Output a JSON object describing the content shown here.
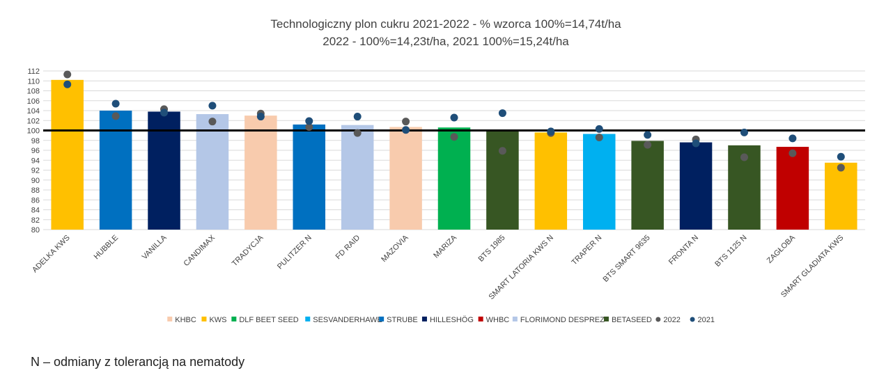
{
  "chart_data": {
    "type": "bar",
    "title_line1": "Technologiczny plon cukru 2021-2022 - % wzorca 100%=14,74t/ha",
    "title_line2": "2022 - 100%=14,23t/ha, 2021 100%=15,24t/ha",
    "ylim": [
      80,
      112
    ],
    "y_ticks": [
      80,
      82,
      84,
      86,
      88,
      90,
      92,
      94,
      96,
      98,
      100,
      102,
      104,
      106,
      108,
      110,
      112
    ],
    "reference_line": 100,
    "grid": true,
    "legend_position": "bottom",
    "categories": [
      "ADELKA KWS",
      "HUBBLE",
      "VANILLA",
      "CANDIMAX",
      "TRADYCJA",
      "PULITZER N",
      "FD RAID",
      "MAZOVIA",
      "MARIZA",
      "BTS 1985",
      "SMART LATORIA KWS N",
      "TRAPER N",
      "BTS SMART 9635",
      "FRONTA N",
      "BTS 1125 N",
      "ZAGŁOBA",
      "SMART GLADIATA KWS"
    ],
    "values": [
      110.2,
      104.0,
      103.8,
      103.3,
      103.0,
      101.2,
      101.1,
      100.7,
      100.6,
      99.8,
      99.6,
      99.3,
      97.9,
      97.6,
      97.0,
      96.7,
      93.5
    ],
    "bar_breeders": [
      "KWS",
      "STRUBE",
      "HILLESHÖG",
      "FLORIMOND DESPREZ",
      "KHBC",
      "STRUBE",
      "FLORIMOND DESPREZ",
      "KHBC",
      "DLF BEET SEED",
      "BETASEED",
      "KWS",
      "SESVANDERHAWE",
      "BETASEED",
      "HILLESHÖG",
      "BETASEED",
      "WHBC",
      "KWS"
    ],
    "series": [
      {
        "name": "2022",
        "color": "#595959",
        "values": [
          111.3,
          102.9,
          104.3,
          101.8,
          103.4,
          100.7,
          99.5,
          101.8,
          98.7,
          95.9,
          99.5,
          98.6,
          97.1,
          98.2,
          94.6,
          95.4,
          92.5
        ]
      },
      {
        "name": "2021",
        "color": "#1f4e79",
        "values": [
          109.3,
          105.4,
          103.6,
          105.0,
          102.8,
          101.9,
          102.8,
          100.1,
          102.6,
          103.5,
          99.8,
          100.3,
          99.1,
          97.4,
          99.6,
          98.4,
          94.7
        ]
      }
    ],
    "breeders": [
      {
        "name": "KHBC",
        "color": "#f8cbad"
      },
      {
        "name": "KWS",
        "color": "#ffc000"
      },
      {
        "name": "DLF BEET SEED",
        "color": "#00b050"
      },
      {
        "name": "SESVANDERHAWE",
        "color": "#00b0f0"
      },
      {
        "name": "STRUBE",
        "color": "#0070c0"
      },
      {
        "name": "HILLESHÖG",
        "color": "#002060"
      },
      {
        "name": "WHBC",
        "color": "#c00000"
      },
      {
        "name": "FLORIMOND DESPREZ",
        "color": "#b4c7e7"
      },
      {
        "name": "BETASEED",
        "color": "#375623"
      }
    ]
  },
  "footnote": "N – odmiany z tolerancją na nematody"
}
